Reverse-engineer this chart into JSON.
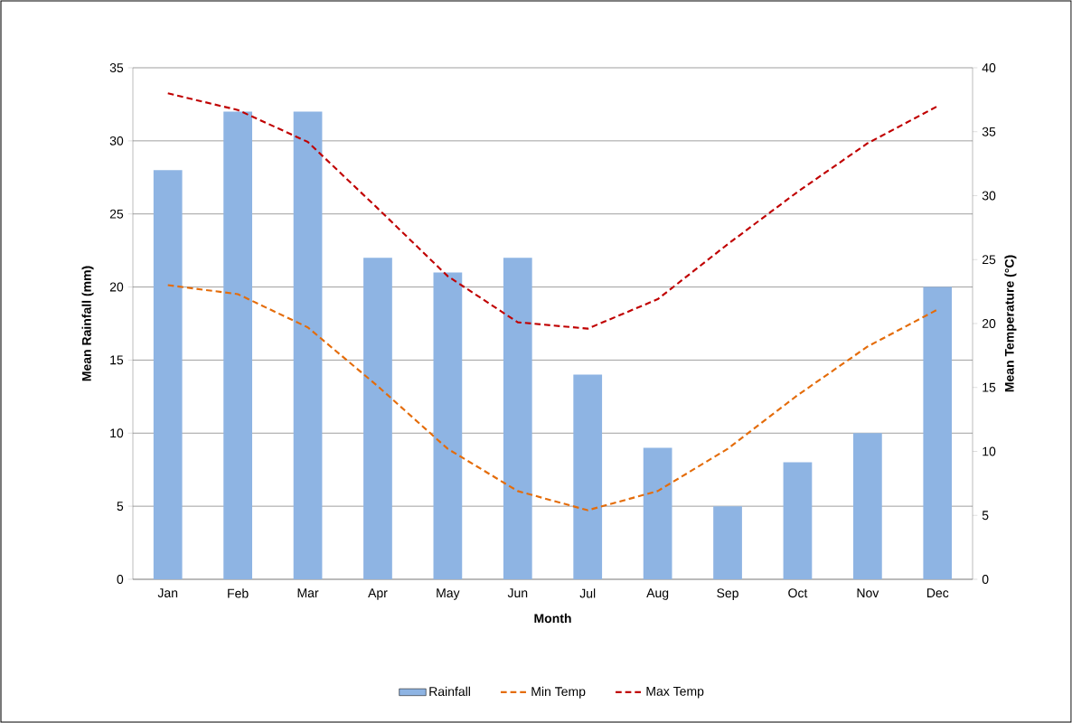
{
  "chart_data": {
    "type": "bar",
    "xlabel": "Month",
    "ylabel": "Mean Rainfall  (mm)",
    "y2label": "Mean Temperature (°C)",
    "categories": [
      "Jan",
      "Feb",
      "Mar",
      "Apr",
      "May",
      "Jun",
      "Jul",
      "Aug",
      "Sep",
      "Oct",
      "Nov",
      "Dec"
    ],
    "ylim": [
      0,
      35
    ],
    "yticks": [
      0,
      5,
      10,
      15,
      20,
      25,
      30,
      35
    ],
    "y2lim": [
      0,
      40
    ],
    "y2ticks": [
      0,
      5,
      10,
      15,
      20,
      25,
      30,
      35,
      40
    ],
    "grid": "y",
    "legend": "bottom",
    "series": [
      {
        "name": "Rainfall",
        "color": "#8eb4e3",
        "values": [
          28,
          32,
          32,
          22,
          21,
          22,
          14,
          9,
          5,
          8,
          10,
          20
        ]
      },
      {
        "name": "Min Temp",
        "type": "line",
        "axis": "y2",
        "line_style": "dashed",
        "color": "#e46c0a",
        "values": [
          23,
          22.3,
          19.7,
          15.1,
          10.2,
          6.9,
          5.4,
          6.9,
          10.2,
          14.4,
          18.2,
          21.1
        ]
      },
      {
        "name": "Max Temp",
        "type": "line",
        "axis": "y2",
        "line_style": "dashed",
        "color": "#c00000",
        "values": [
          38,
          36.7,
          34.2,
          29,
          23.7,
          20.1,
          19.6,
          21.9,
          26.2,
          30.3,
          34.1,
          37
        ]
      }
    ]
  }
}
